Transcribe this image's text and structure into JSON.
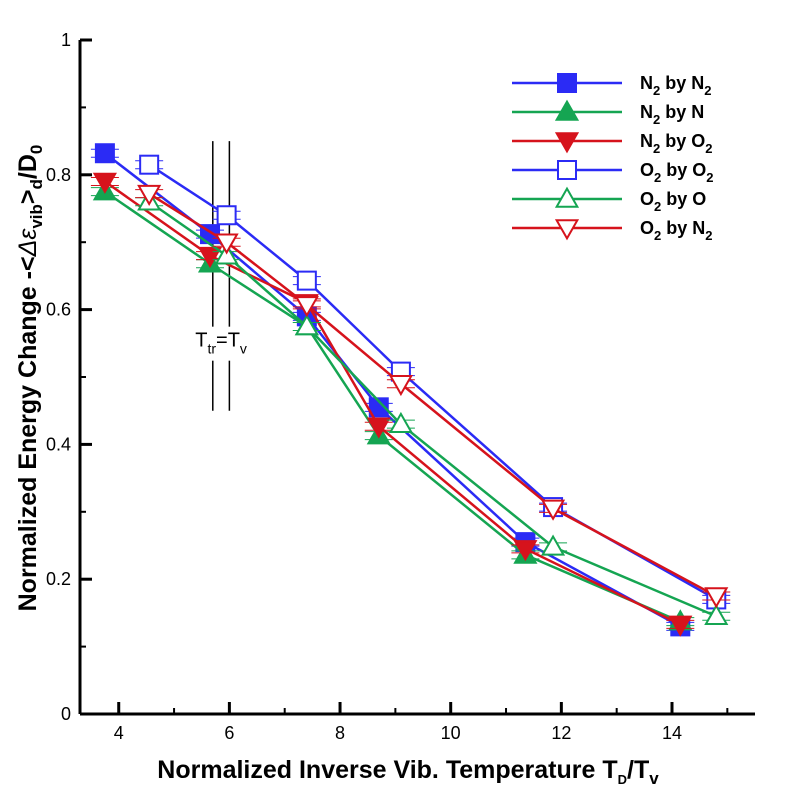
{
  "chart_data": {
    "type": "line",
    "xlabel": "Normalized Inverse Vib. Temperature T",
    "xlabel_sub": "D",
    "xlabel_tail": "/T",
    "xlabel_sub2": "v",
    "ylabel_parts": [
      "Normalized Energy Change -<",
      "Δε",
      "vib",
      ">",
      "d",
      "/D",
      "0"
    ],
    "xlim": [
      3.3,
      15.5
    ],
    "ylim": [
      0,
      1
    ],
    "xticks": [
      4,
      6,
      8,
      10,
      12,
      14
    ],
    "yticks": [
      0,
      0.2,
      0.4,
      0.6,
      0.8,
      1
    ],
    "ytick_labels": [
      "0",
      "0.2",
      "0.4",
      "0.6",
      "0.8",
      "1"
    ],
    "annotation": {
      "main": "T",
      "sub1": "tr",
      "mid": "=T",
      "sub2": "v",
      "x_lines": [
        5.7,
        6.0
      ],
      "y_range": [
        0.45,
        0.85
      ],
      "text_x": 5.85,
      "text_y": 0.545
    },
    "series": [
      {
        "name": "N2 by N2",
        "legend_parts": [
          "N",
          "2",
          " by N",
          "2"
        ],
        "color": "#2b2bf5",
        "marker": "square",
        "filled": true,
        "x": [
          3.75,
          5.65,
          7.4,
          8.7,
          11.35,
          14.15
        ],
        "y": [
          0.832,
          0.712,
          0.59,
          0.455,
          0.255,
          0.13
        ]
      },
      {
        "name": "N2 by N",
        "legend_parts": [
          "N",
          "2",
          " by N",
          ""
        ],
        "color": "#15a552",
        "marker": "triangle-up",
        "filled": true,
        "x": [
          3.75,
          5.65,
          7.4,
          8.7,
          11.35,
          14.15
        ],
        "y": [
          0.775,
          0.668,
          0.575,
          0.413,
          0.236,
          0.137
        ]
      },
      {
        "name": "N2 by O2",
        "legend_parts": [
          "N",
          "2",
          " by O",
          "2"
        ],
        "color": "#d6131c",
        "marker": "triangle-down",
        "filled": true,
        "x": [
          3.75,
          5.65,
          7.4,
          8.7,
          11.35,
          14.15
        ],
        "y": [
          0.79,
          0.68,
          0.61,
          0.427,
          0.245,
          0.133
        ]
      },
      {
        "name": "O2 by O2",
        "legend_parts": [
          "O",
          "2",
          " by O",
          "2"
        ],
        "color": "#2b2bf5",
        "marker": "square",
        "filled": false,
        "x": [
          4.55,
          5.95,
          7.4,
          9.1,
          11.85,
          14.8
        ],
        "y": [
          0.815,
          0.74,
          0.643,
          0.508,
          0.307,
          0.17
        ]
      },
      {
        "name": "O2 by O",
        "legend_parts": [
          "O",
          "2",
          " by O",
          ""
        ],
        "color": "#15a552",
        "marker": "triangle-up",
        "filled": false,
        "x": [
          4.55,
          5.95,
          7.4,
          9.1,
          11.85,
          14.8
        ],
        "y": [
          0.76,
          0.68,
          0.575,
          0.43,
          0.248,
          0.145
        ]
      },
      {
        "name": "O2 by N2",
        "legend_parts": [
          "O",
          "2",
          " by N",
          "2"
        ],
        "color": "#d6131c",
        "marker": "triangle-down",
        "filled": false,
        "x": [
          4.55,
          5.95,
          7.4,
          9.1,
          11.85,
          14.8
        ],
        "y": [
          0.772,
          0.7,
          0.607,
          0.49,
          0.305,
          0.175
        ]
      }
    ]
  }
}
